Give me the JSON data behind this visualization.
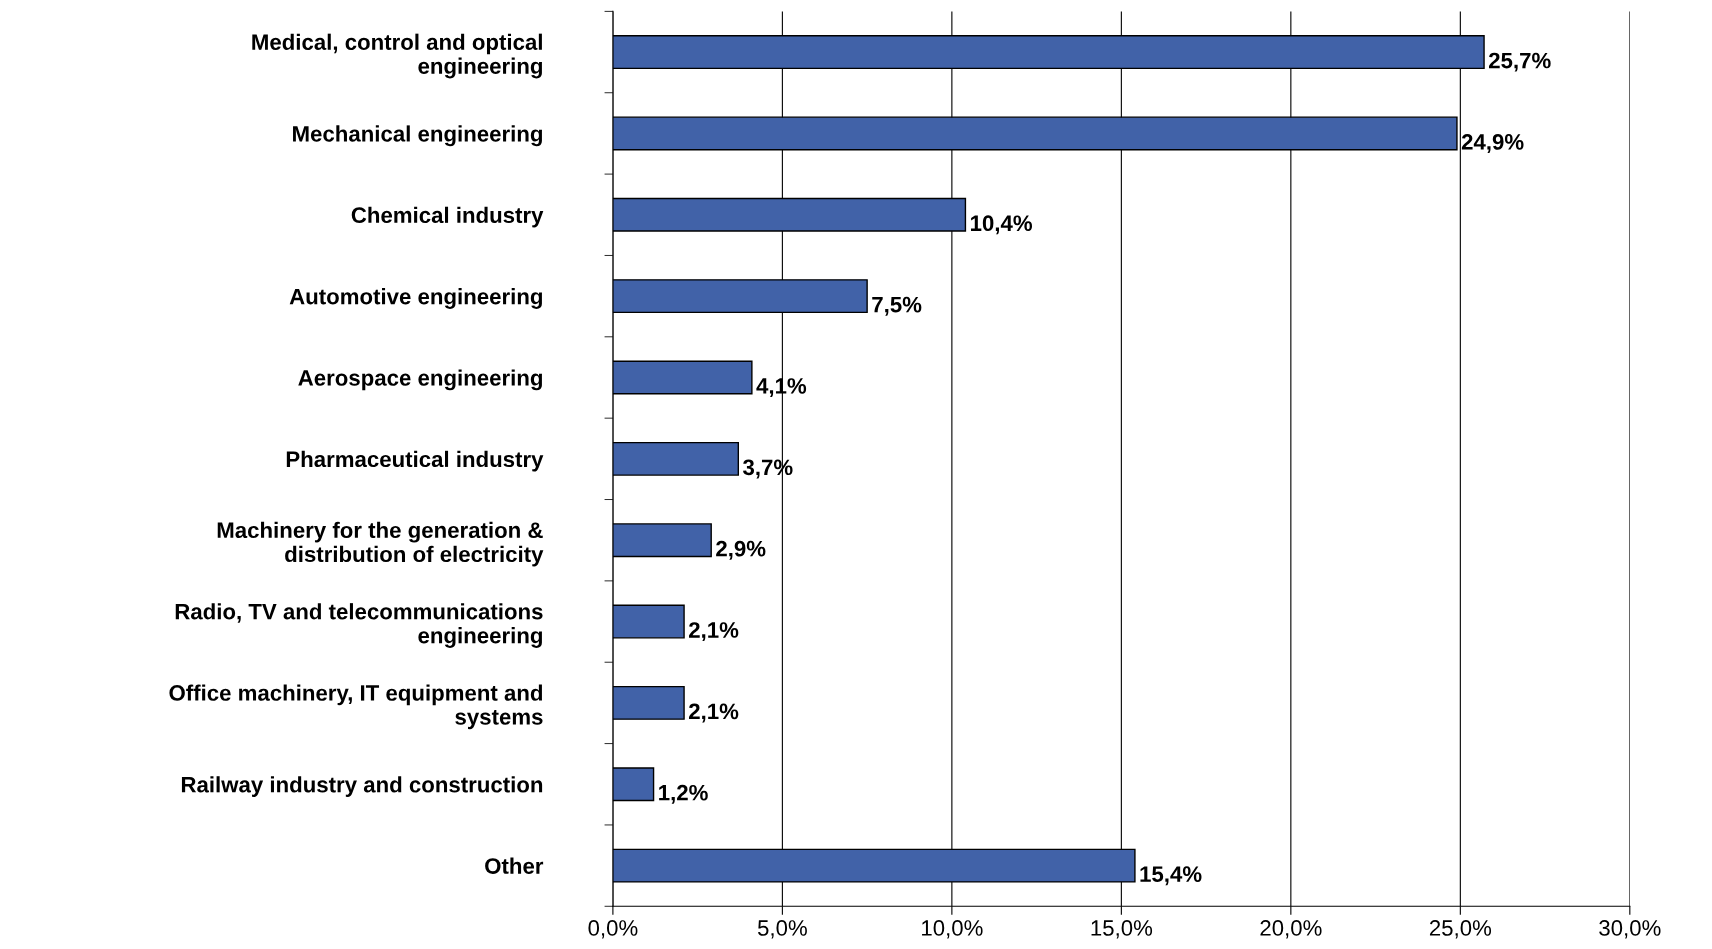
{
  "chart_data": {
    "type": "bar",
    "orientation": "horizontal",
    "categories": [
      "Medical, control and optical\nengineering",
      "Mechanical engineering",
      "Chemical industry",
      "Automotive engineering",
      "Aerospace engineering",
      "Pharmaceutical industry",
      "Machinery for the generation &\ndistribution of electricity",
      "Radio, TV and telecommunications\nengineering",
      "Office machinery, IT equipment and\nsystems",
      "Railway industry and construction",
      "Other"
    ],
    "values": [
      25.7,
      24.9,
      10.4,
      7.5,
      4.1,
      3.7,
      2.9,
      2.1,
      2.1,
      1.2,
      15.4
    ],
    "value_labels": [
      "25,7%",
      "24,9%",
      "10,4%",
      "7,5%",
      "4,1%",
      "3,7%",
      "2,9%",
      "2,1%",
      "2,1%",
      "1,2%",
      "15,4%"
    ],
    "color": "#4162a8",
    "xlim": [
      0,
      30
    ],
    "xticks": [
      {
        "value": 0,
        "label": "0,0%"
      },
      {
        "value": 5,
        "label": "5,0%"
      },
      {
        "value": 10,
        "label": "10,0%"
      },
      {
        "value": 15,
        "label": "15,0%"
      },
      {
        "value": 20,
        "label": "20,0%"
      },
      {
        "value": 25,
        "label": "25,0%"
      },
      {
        "value": 30,
        "label": "30,0%"
      }
    ],
    "grid": "x",
    "legend": false
  }
}
